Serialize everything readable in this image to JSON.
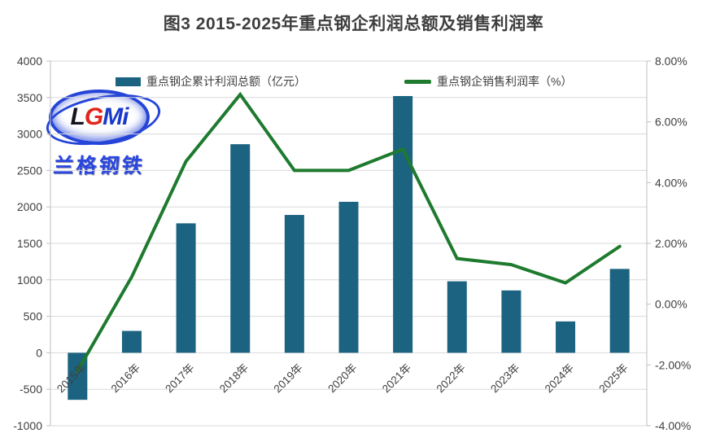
{
  "chart_data": {
    "type": "combo",
    "title": "图3 2015-2025年重点钢企利润总额及销售利润率",
    "categories": [
      "2015年",
      "2016年",
      "2017年",
      "2018年",
      "2019年",
      "2020年",
      "2021年",
      "2022年",
      "2023年",
      "2024年",
      "2025年"
    ],
    "series": [
      {
        "name": "重点钢企累计利润总额（亿元）",
        "type": "bar",
        "axis": "left",
        "color": "#1B6380",
        "values": [
          -645,
          300,
          1775,
          2860,
          1890,
          2070,
          3520,
          980,
          855,
          430,
          1150
        ]
      },
      {
        "name": "重点钢企销售利润率（%）",
        "type": "line",
        "axis": "right",
        "color": "#1E7A2E",
        "values": [
          -2.2,
          0.9,
          4.7,
          6.9,
          4.4,
          4.4,
          5.1,
          1.5,
          1.3,
          0.7,
          1.9
        ]
      }
    ],
    "left_axis": {
      "min": -1000,
      "max": 4000,
      "tick_values": [
        4000,
        3500,
        3000,
        2500,
        2000,
        1500,
        1000,
        500,
        0,
        -500,
        -1000
      ],
      "tick_labels": [
        "4000",
        "3500",
        "3000",
        "2500",
        "2000",
        "1500",
        "1000",
        "500",
        "0",
        "-500",
        "-1000"
      ]
    },
    "right_axis": {
      "min": -4,
      "max": 8,
      "tick_values": [
        8,
        6,
        4,
        2,
        0,
        -2,
        -4
      ],
      "tick_labels": [
        "8.00%",
        "6.00%",
        "4.00%",
        "2.00%",
        "0.00%",
        "-2.00%",
        "-4.00%"
      ]
    },
    "grid": true,
    "legend_position": "top",
    "x_label_rotation": -45
  },
  "logo": {
    "l": "L",
    "g": "G",
    "m": "M",
    "i": "i",
    "name": "兰格钢铁"
  },
  "colors": {
    "bar": "#1B6380",
    "line": "#1E7A2E",
    "title": "#3F3F3F",
    "axis_text": "#404040",
    "gridline": "#D9D9D9",
    "axis_line": "#BFBFBF"
  }
}
